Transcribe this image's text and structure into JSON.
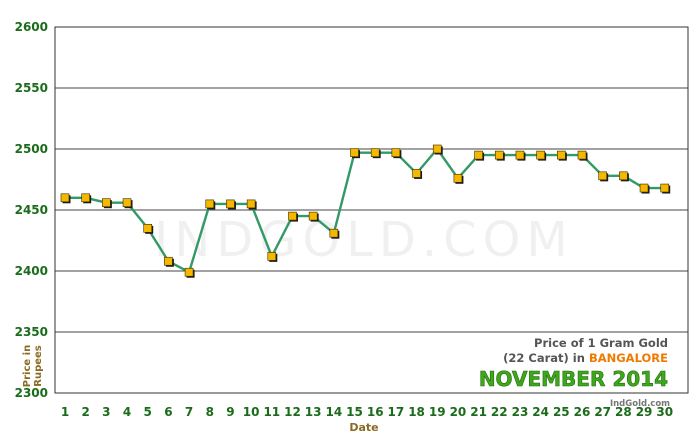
{
  "chart_data": {
    "type": "line",
    "title_lines": [
      "Price of 1 Gram Gold",
      "(22 Carat) in "
    ],
    "title_city": "BANGALORE",
    "title_month": "NOVEMBER 2014",
    "xlabel": "Date",
    "ylabel_lines": [
      "Price in",
      "Rupees"
    ],
    "ylim": [
      2300,
      2600
    ],
    "yticks": [
      2300,
      2350,
      2400,
      2450,
      2500,
      2550,
      2600
    ],
    "x": [
      1,
      2,
      3,
      4,
      5,
      6,
      7,
      8,
      9,
      10,
      11,
      12,
      13,
      14,
      15,
      16,
      17,
      18,
      19,
      20,
      21,
      22,
      23,
      24,
      25,
      26,
      27,
      28,
      29,
      30
    ],
    "values": [
      2460,
      2460,
      2456,
      2456,
      2435,
      2408,
      2399,
      2455,
      2455,
      2455,
      2412,
      2445,
      2445,
      2431,
      2497,
      2497,
      2497,
      2480,
      2500,
      2476,
      2495,
      2495,
      2495,
      2495,
      2495,
      2495,
      2478,
      2478,
      2468,
      2468
    ],
    "grid": true,
    "watermark": "INDGOLD.COM",
    "source": "IndGold.com",
    "colors": {
      "axis_text": "#1a6b1a",
      "line": "#339966",
      "marker_fill": "#f5b800",
      "marker_edge": "#3a2a00",
      "ylabel": "#8b6b22",
      "title": "#555555",
      "city": "#f07a00",
      "month": "#3fa71b",
      "source": "#777777",
      "plot_border": "#333333",
      "gridline": "#444444"
    }
  }
}
